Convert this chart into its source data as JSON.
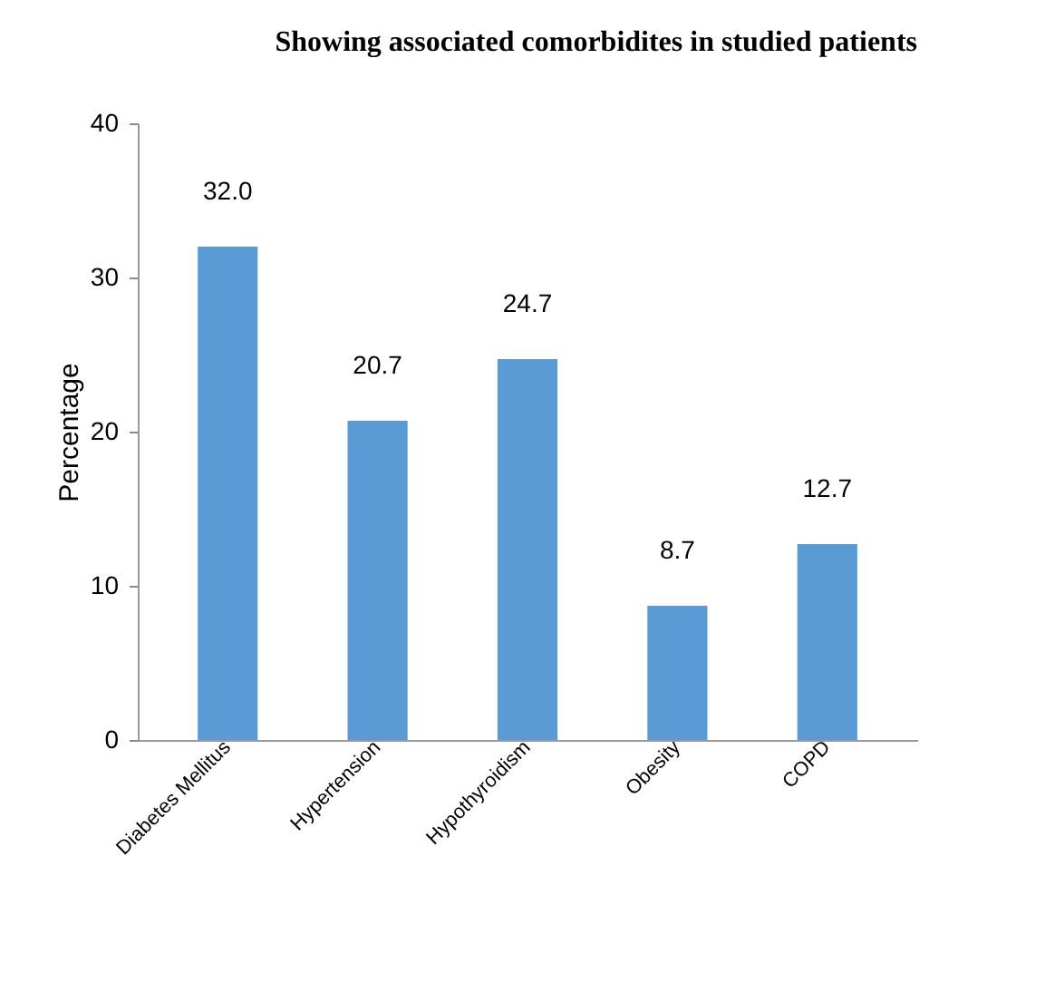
{
  "chart_data": {
    "type": "bar",
    "title": "Showing associated comorbidites in studied patients",
    "ylabel": "Percentage",
    "categories": [
      "Diabetes Mellitus",
      "Hypertension",
      "Hypothyroidism",
      "Obesity",
      "COPD"
    ],
    "values": [
      32.0,
      20.7,
      24.7,
      8.7,
      12.7
    ],
    "value_labels": [
      "32.0",
      "20.7",
      "24.7",
      "8.7",
      "12.7"
    ],
    "color": "#5b9bd5",
    "ylim": [
      0,
      40
    ],
    "yticks": [
      0,
      10,
      20,
      30,
      40
    ],
    "grid": false
  }
}
